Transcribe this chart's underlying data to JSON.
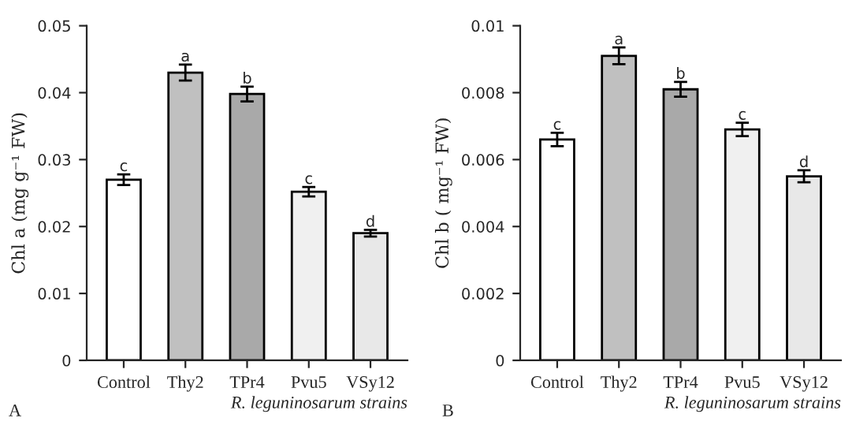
{
  "chart_data": [
    {
      "type": "bar",
      "ylabel": "Chl a (mg g⁻¹ FW)",
      "xlabel": "R. leguninosarum strains",
      "categories": [
        "Control",
        "Thy2",
        "TPr4",
        "Pvu5",
        "VSy12"
      ],
      "values": [
        0.027,
        0.043,
        0.0398,
        0.0252,
        0.019
      ],
      "errors": [
        0.0008,
        0.0012,
        0.0011,
        0.0007,
        0.0005
      ],
      "colors": [
        "#ffffff",
        "#c0c0c0",
        "#a9a9a9",
        "#f0f0f0",
        "#e8e8e8"
      ],
      "ylim": [
        0,
        0.05
      ],
      "yticks": [
        0,
        0.01,
        0.02,
        0.03,
        0.04,
        0.05
      ],
      "grid": false,
      "annotations": [
        {
          "text": "c",
          "x": "Control",
          "y": 0.0278
        },
        {
          "text": "a",
          "x": "Thy2",
          "y": 0.0442
        },
        {
          "text": "b",
          "x": "TPr4",
          "y": 0.0409
        },
        {
          "text": "c",
          "x": "Pvu5",
          "y": 0.0259
        },
        {
          "text": "d",
          "x": "VSy12",
          "y": 0.0195
        },
        "A"
      ]
    },
    {
      "type": "bar",
      "ylabel": "Chl b ( mg⁻¹ FW)",
      "xlabel": "R. leguninosarum strains",
      "categories": [
        "Control",
        "Thy2",
        "TPr4",
        "Pvu5",
        "VSy12"
      ],
      "values": [
        0.0066,
        0.0091,
        0.0081,
        0.0069,
        0.0055
      ],
      "errors": [
        0.0002,
        0.00025,
        0.00022,
        0.0002,
        0.00018
      ],
      "colors": [
        "#ffffff",
        "#c0c0c0",
        "#a9a9a9",
        "#f0f0f0",
        "#e8e8e8"
      ],
      "ylim": [
        0,
        0.01
      ],
      "yticks": [
        0,
        0.002,
        0.004,
        0.006,
        0.008,
        0.01
      ],
      "grid": false,
      "annotations": [
        {
          "text": "c",
          "x": "Control",
          "y": 0.0068
        },
        {
          "text": "a",
          "x": "Thy2",
          "y": 0.00935
        },
        {
          "text": "b",
          "x": "TPr4",
          "y": 0.00832
        },
        {
          "text": "c",
          "x": "Pvu5",
          "y": 0.0071
        },
        {
          "text": "d",
          "x": "VSy12",
          "y": 0.00568
        },
        "B"
      ]
    }
  ]
}
